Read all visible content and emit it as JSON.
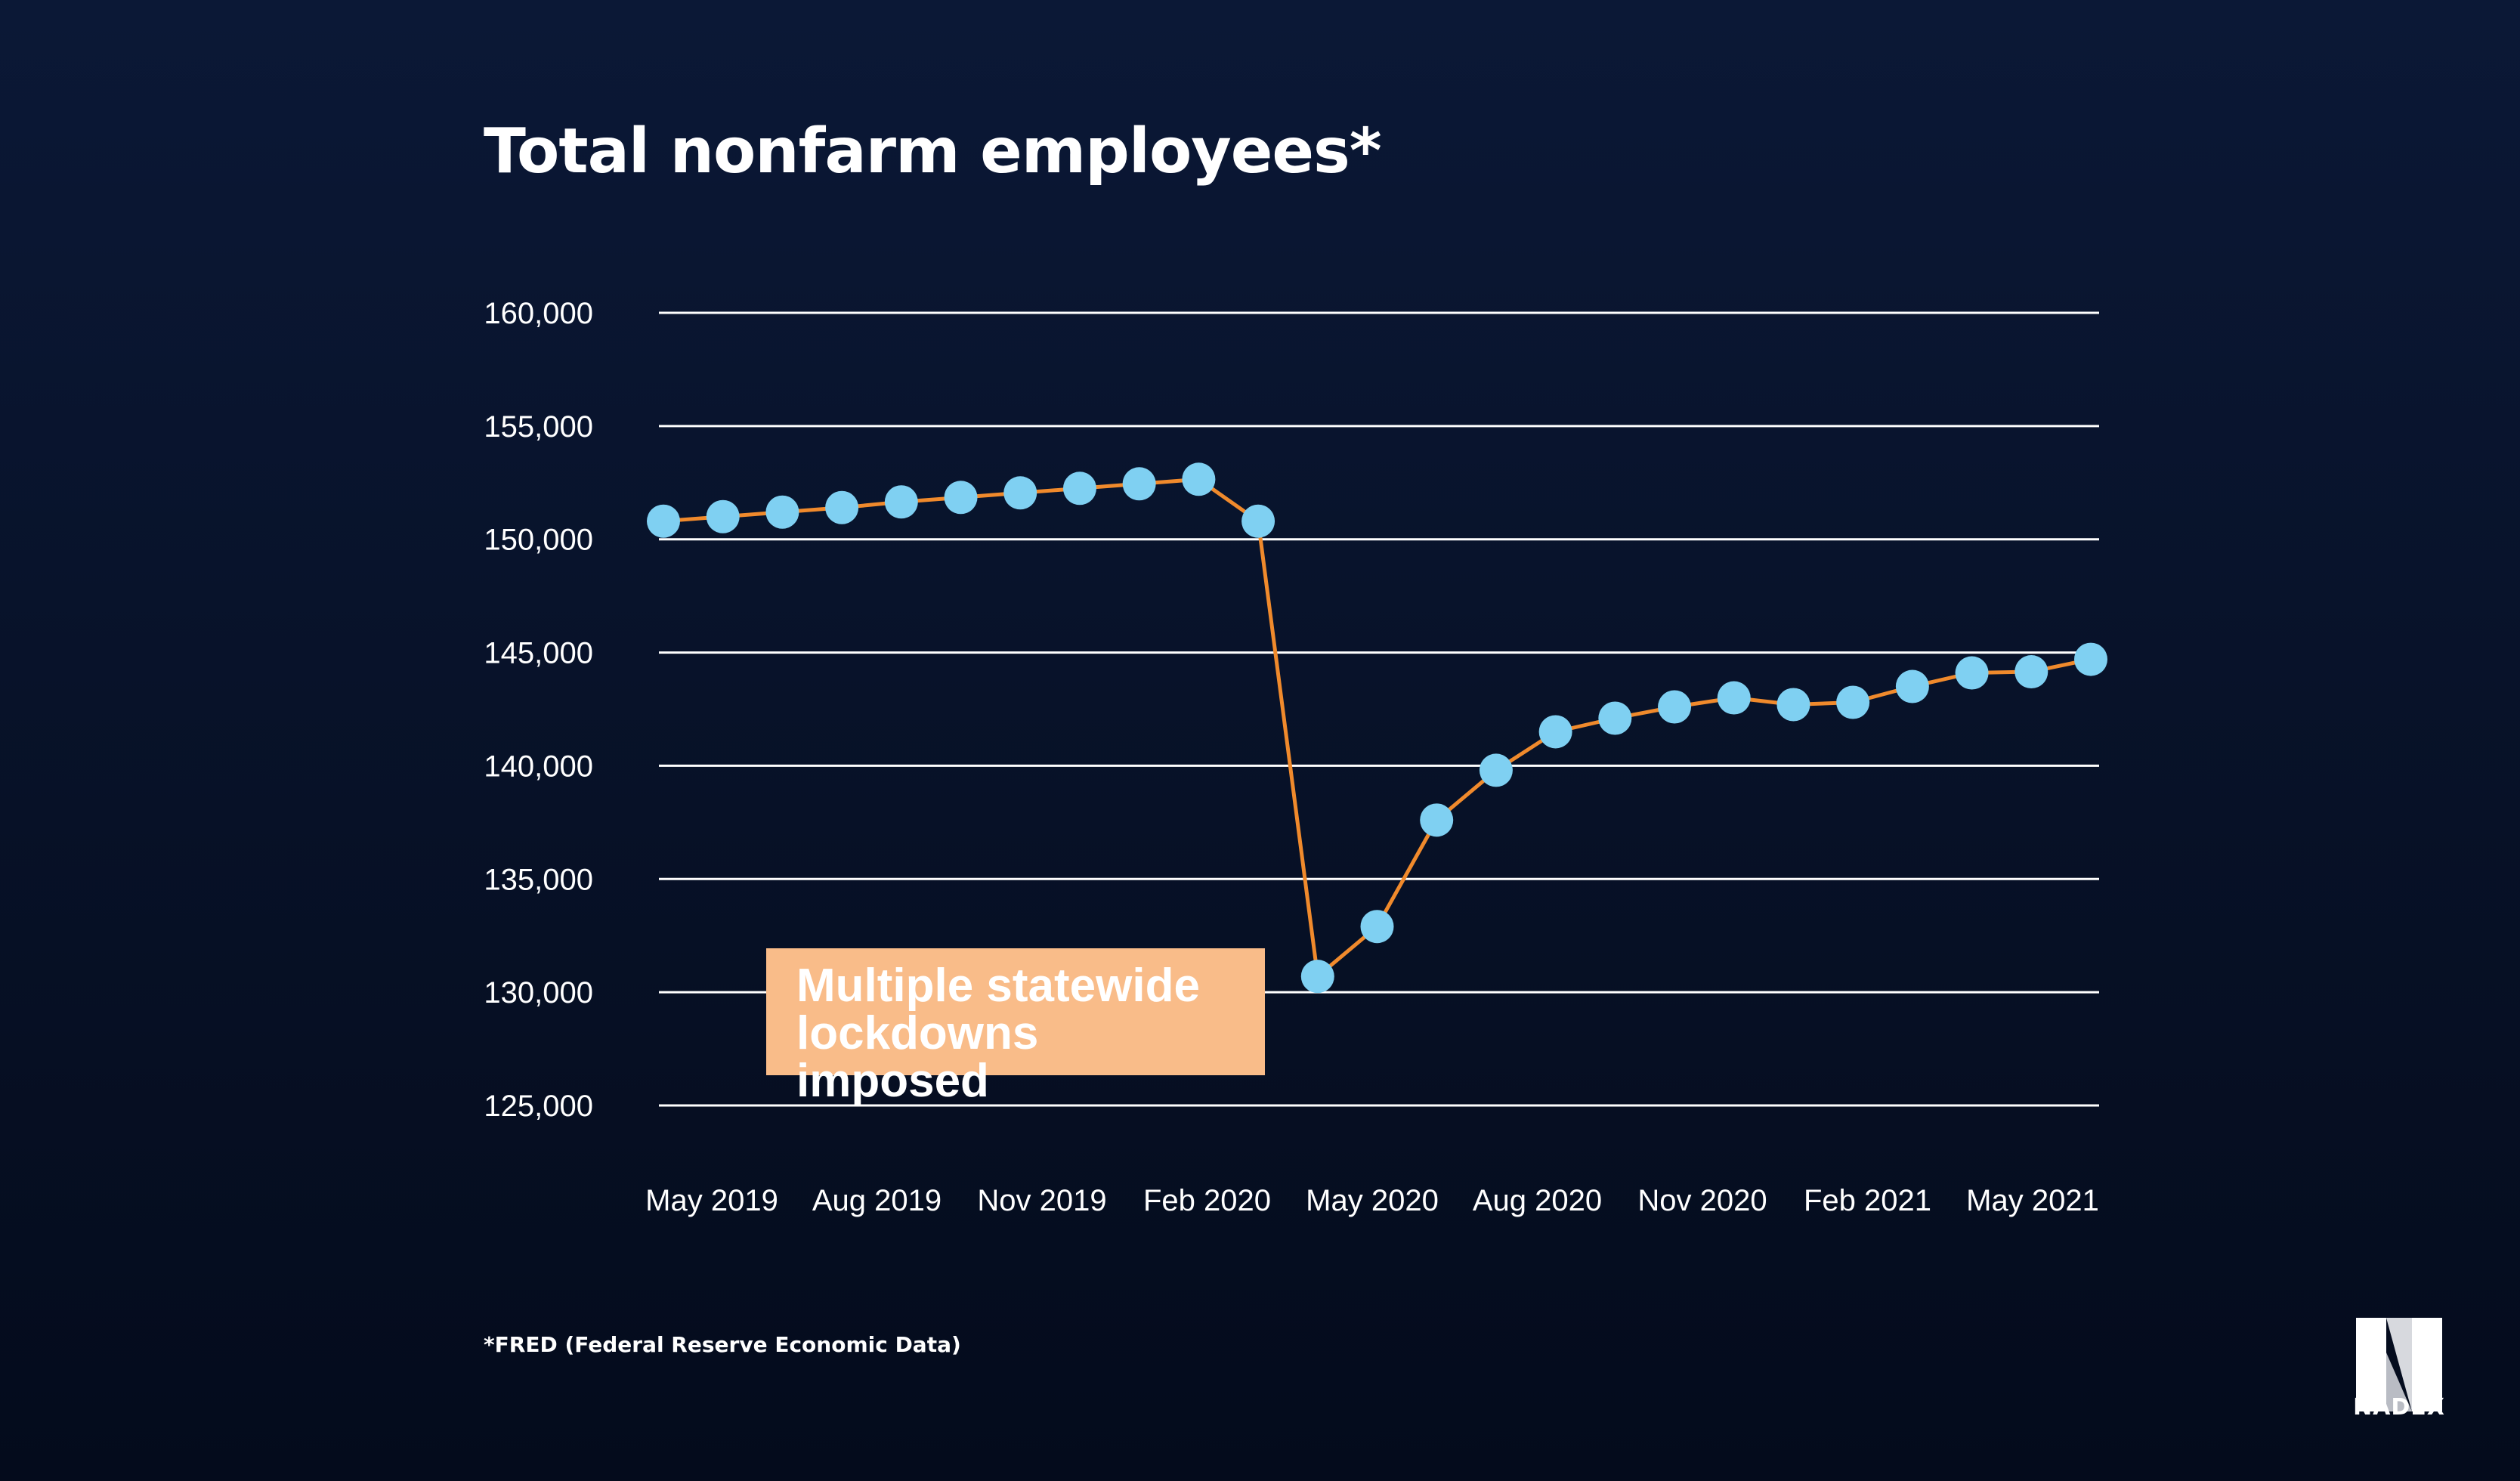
{
  "colors": {
    "background": "#071127",
    "line": "#f08a2c",
    "marker": "#7fd0f2",
    "grid": "#ffffff",
    "annotation_bg": "#f9bc89"
  },
  "chart_data": {
    "type": "line",
    "title": "Total nonfarm employees*",
    "xlabel": "",
    "ylabel": "",
    "ylim": [
      125000,
      160000
    ],
    "yticks": [
      160000,
      155000,
      150000,
      145000,
      140000,
      135000,
      130000,
      125000
    ],
    "ytick_labels": [
      "160,000",
      "155,000",
      "150,000",
      "145,000",
      "140,000",
      "135,000",
      "130,000",
      "125,000"
    ],
    "xtick_labels": [
      "May 2019",
      "Aug 2019",
      "Nov 2019",
      "Feb 2020",
      "May 2020",
      "Aug 2020",
      "Nov 2020",
      "Feb 2021",
      "May 2021"
    ],
    "grid": true,
    "series": [
      {
        "name": "Total nonfarm employees",
        "values": [
          150800,
          151000,
          151200,
          151400,
          151650,
          151850,
          152050,
          152250,
          152450,
          152650,
          150800,
          130700,
          132900,
          137600,
          139800,
          141500,
          142100,
          142600,
          143000,
          142700,
          142800,
          143500,
          144100,
          144150,
          144700
        ]
      }
    ],
    "annotation": {
      "text": "Multiple statewide\nlockdowns imposed",
      "point_index": 11
    }
  },
  "footnote": "*FRED (Federal Reserve Economic Data)",
  "logo": {
    "icon": "nadex-n-logo-icon",
    "text": "NADEX"
  }
}
